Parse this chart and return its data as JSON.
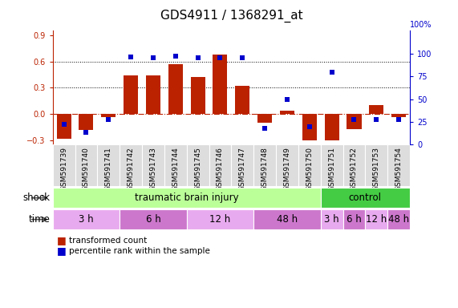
{
  "title": "GDS4911 / 1368291_at",
  "samples": [
    "GSM591739",
    "GSM591740",
    "GSM591741",
    "GSM591742",
    "GSM591743",
    "GSM591744",
    "GSM591745",
    "GSM591746",
    "GSM591747",
    "GSM591748",
    "GSM591749",
    "GSM591750",
    "GSM591751",
    "GSM591752",
    "GSM591753",
    "GSM591754"
  ],
  "bar_values": [
    -0.28,
    -0.18,
    -0.03,
    0.44,
    0.44,
    0.57,
    0.42,
    0.68,
    0.32,
    -0.1,
    0.04,
    -0.3,
    -0.3,
    -0.17,
    0.1,
    -0.03
  ],
  "dot_values": [
    22,
    14,
    28,
    96,
    95,
    97,
    95,
    95,
    95,
    18,
    50,
    20,
    80,
    28,
    28,
    28
  ],
  "bar_color": "#bb2200",
  "dot_color": "#0000cc",
  "ylim_left": [
    -0.35,
    0.95
  ],
  "ylim_right": [
    0,
    125
  ],
  "yticks_left": [
    -0.3,
    0.0,
    0.3,
    0.6,
    0.9
  ],
  "yticks_right": [
    0,
    25,
    50,
    75,
    100
  ],
  "dotted_lines": [
    0.3,
    0.6
  ],
  "shock_groups": [
    {
      "label": "traumatic brain injury",
      "start": 0,
      "end": 12,
      "color": "#bbff99"
    },
    {
      "label": "control",
      "start": 12,
      "end": 16,
      "color": "#44cc44"
    }
  ],
  "time_groups": [
    {
      "label": "3 h",
      "start": 0,
      "end": 3,
      "color": "#e8aaee"
    },
    {
      "label": "6 h",
      "start": 3,
      "end": 6,
      "color": "#cc77cc"
    },
    {
      "label": "12 h",
      "start": 6,
      "end": 9,
      "color": "#e8aaee"
    },
    {
      "label": "48 h",
      "start": 9,
      "end": 12,
      "color": "#cc77cc"
    },
    {
      "label": "3 h",
      "start": 12,
      "end": 13,
      "color": "#e8aaee"
    },
    {
      "label": "6 h",
      "start": 13,
      "end": 14,
      "color": "#cc77cc"
    },
    {
      "label": "12 h",
      "start": 14,
      "end": 15,
      "color": "#e8aaee"
    },
    {
      "label": "48 h",
      "start": 15,
      "end": 16,
      "color": "#cc77cc"
    }
  ],
  "legend_items": [
    {
      "label": "transformed count",
      "color": "#bb2200"
    },
    {
      "label": "percentile rank within the sample",
      "color": "#0000cc"
    }
  ],
  "background_color": "#ffffff",
  "title_fontsize": 11,
  "tick_fontsize": 7,
  "label_fontsize": 8.5,
  "sample_fontsize": 6.5
}
